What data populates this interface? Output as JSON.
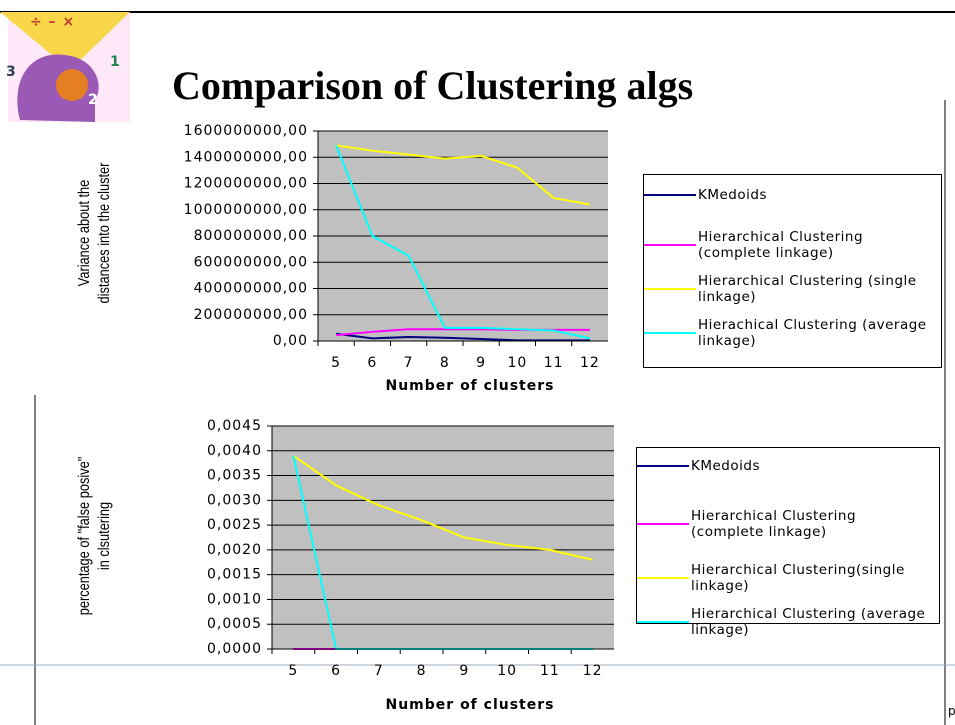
{
  "slide": {
    "title": "Comparison of Clustering algs",
    "footer": "p"
  },
  "chart_data": [
    {
      "type": "line",
      "y_label": "Variance about the distances into the cluster",
      "x_label": "Number of clusters",
      "categories": [
        "5",
        "6",
        "7",
        "8",
        "9",
        "10",
        "11",
        "12"
      ],
      "ylim": [
        0,
        1600000000
      ],
      "yticks": [
        {
          "value": 0,
          "label": "0,00"
        },
        {
          "value": 200000000,
          "label": "200000000,00"
        },
        {
          "value": 400000000,
          "label": "400000000,00"
        },
        {
          "value": 600000000,
          "label": "600000000,00"
        },
        {
          "value": 800000000,
          "label": "800000000,00"
        },
        {
          "value": 1000000000,
          "label": "1000000000,00"
        },
        {
          "value": 1200000000,
          "label": "1200000000,00"
        },
        {
          "value": 1400000000,
          "label": "1400000000,00"
        },
        {
          "value": 1600000000,
          "label": "1600000000,00"
        }
      ],
      "grid": true,
      "series": [
        {
          "name": "KMedoids",
          "color": "#000080",
          "values": [
            55000000,
            20000000,
            30000000,
            25000000,
            15000000,
            5000000,
            5000000,
            5000000
          ]
        },
        {
          "name": "Hierarchical Clustering (complete linkage)",
          "color": "#ff00ff",
          "values": [
            45000000,
            70000000,
            90000000,
            90000000,
            90000000,
            85000000,
            85000000,
            85000000
          ]
        },
        {
          "name": "Hierarchical Clustering (single linkage)",
          "color": "#ffff00",
          "values": [
            1490000000,
            1450000000,
            1420000000,
            1390000000,
            1410000000,
            1320000000,
            1090000000,
            1040000000
          ]
        },
        {
          "name": "Hierachical Clustering (average linkage)",
          "color": "#00ffff",
          "values": [
            1490000000,
            800000000,
            650000000,
            100000000,
            100000000,
            90000000,
            80000000,
            20000000
          ]
        }
      ]
    },
    {
      "type": "line",
      "y_label": "percentage of  \"false posive\" in clsutering",
      "x_label": "Number of clusters",
      "categories": [
        "5",
        "6",
        "7",
        "8",
        "9",
        "10",
        "11",
        "12"
      ],
      "ylim": [
        0,
        0.0045
      ],
      "yticks": [
        {
          "value": 0,
          "label": "0,0000"
        },
        {
          "value": 0.0005,
          "label": "0,0005"
        },
        {
          "value": 0.001,
          "label": "0,0010"
        },
        {
          "value": 0.0015,
          "label": "0,0015"
        },
        {
          "value": 0.002,
          "label": "0,0020"
        },
        {
          "value": 0.0025,
          "label": "0,0025"
        },
        {
          "value": 0.003,
          "label": "0,0030"
        },
        {
          "value": 0.0035,
          "label": "0,0035"
        },
        {
          "value": 0.004,
          "label": "0,0040"
        },
        {
          "value": 0.0045,
          "label": "0,0045"
        }
      ],
      "grid": true,
      "series": [
        {
          "name": "KMedoids",
          "color": "#000080",
          "values": [
            0,
            0,
            0,
            0,
            0,
            0,
            0,
            0
          ]
        },
        {
          "name": "Hierarchical Clustering (complete linkage)",
          "color": "#ff00ff",
          "values": [
            0,
            0,
            0,
            0,
            0,
            0,
            0,
            0
          ]
        },
        {
          "name": "Hierarchical Clustering(single linkage)",
          "color": "#ffff00",
          "values": [
            0.0039,
            0.0033,
            0.0029,
            0.0026,
            0.00225,
            0.0021,
            0.002,
            0.0018
          ]
        },
        {
          "name": "Hierarchical Clustering (average linkage)",
          "color": "#00ffff",
          "values": [
            0.0039,
            0,
            0,
            0,
            0,
            0,
            0,
            0
          ]
        }
      ]
    }
  ]
}
